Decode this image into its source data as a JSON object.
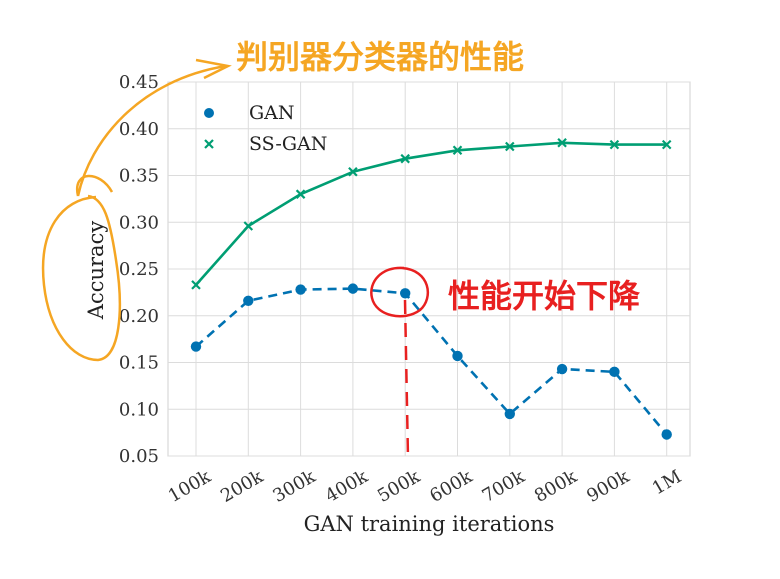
{
  "chart_data": {
    "type": "line",
    "categories": [
      "100k",
      "200k",
      "300k",
      "400k",
      "500k",
      "600k",
      "700k",
      "800k",
      "900k",
      "1M"
    ],
    "series": [
      {
        "name": "GAN",
        "values": [
          0.167,
          0.216,
          0.228,
          0.229,
          0.224,
          0.157,
          0.095,
          0.143,
          0.14,
          0.073
        ],
        "color": "#0072b2",
        "line_style": "dashed",
        "marker": "circle"
      },
      {
        "name": "SS-GAN",
        "values": [
          0.233,
          0.296,
          0.33,
          0.354,
          0.368,
          0.377,
          0.381,
          0.385,
          0.383,
          0.383
        ],
        "color": "#009e73",
        "line_style": "solid",
        "marker": "x"
      }
    ],
    "xlabel": "GAN training iterations",
    "ylabel": "Accuracy",
    "ylim": [
      0.05,
      0.45
    ],
    "yticks": [
      "0.05",
      "0.10",
      "0.15",
      "0.20",
      "0.25",
      "0.30",
      "0.35",
      "0.40",
      "0.45"
    ],
    "grid": true,
    "legend_position": "top-left"
  },
  "annotations": {
    "top_note": "判别器分类器的性能",
    "right_note": "性能开始下降",
    "top_note_color": "#f5a623",
    "right_note_color": "#e82020"
  }
}
